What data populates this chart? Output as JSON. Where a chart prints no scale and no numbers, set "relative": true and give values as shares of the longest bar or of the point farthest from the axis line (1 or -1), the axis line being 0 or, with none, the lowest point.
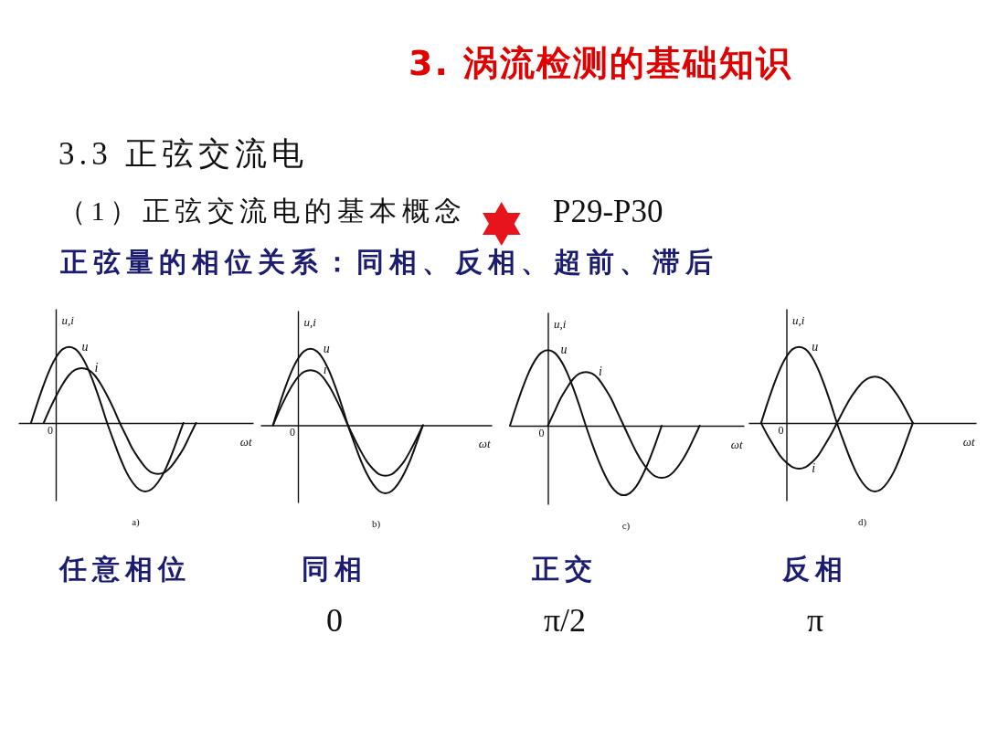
{
  "chart_data": [
    {
      "type": "other",
      "title": "3. 涡流检测的基础知识",
      "subtitle": "3.3 正弦交流电",
      "annotations": [
        "（1）正弦交流电的基本概念",
        "P29-P30",
        "正弦量的相位关系：同相、反相、超前、滞后"
      ]
    },
    {
      "type": "line",
      "relative": true,
      "xlabel": "ωt",
      "ylabel": "u,i",
      "categories": [
        null,
        null,
        null,
        null,
        null,
        null,
        null,
        null,
        null,
        null,
        null,
        null,
        null,
        null,
        null,
        null,
        null,
        null,
        null,
        null,
        null,
        null,
        null,
        null,
        null,
        null,
        null,
        null,
        null,
        null,
        null,
        null,
        null,
        null,
        null,
        null,
        null,
        null
      ],
      "series": [
        {
          "name": "u",
          "color": "#111111",
          "values": [
            null,
            null,
            0,
            0.26,
            0.5,
            0.71,
            0.87,
            0.97,
            1,
            0.97,
            0.87,
            0.71,
            0.5,
            0.26,
            0,
            -0.23,
            -0.45,
            -0.64,
            -0.78,
            -0.87,
            -0.9,
            -0.87,
            -0.78,
            -0.64,
            -0.45,
            -0.23,
            0,
            null,
            null,
            null,
            null,
            null,
            null,
            null,
            null,
            null,
            null,
            null
          ]
        },
        {
          "name": "i",
          "color": "#111111",
          "values": [
            null,
            null,
            null,
            null,
            0,
            0.19,
            0.36,
            0.51,
            0.63,
            0.7,
            0.72,
            0.7,
            0.63,
            0.51,
            0.36,
            0.19,
            0,
            -0.17,
            -0.34,
            -0.47,
            -0.58,
            -0.65,
            -0.67,
            -0.65,
            -0.58,
            -0.47,
            -0.34,
            -0.17,
            0,
            null,
            null,
            null,
            null,
            null,
            null,
            null,
            null,
            null
          ]
        }
      ],
      "annotations": [
        "0",
        "a)",
        "任意相位"
      ]
    },
    {
      "type": "line",
      "relative": true,
      "xlabel": "ωt",
      "ylabel": "u,i",
      "categories": [
        null,
        null,
        null,
        null,
        null,
        null,
        null,
        null,
        null,
        null,
        null,
        null,
        null,
        null,
        null,
        null,
        null,
        null,
        null,
        null,
        null,
        null,
        null,
        null,
        null,
        null,
        null,
        null,
        null,
        null,
        null,
        null,
        null,
        null,
        null,
        null,
        null,
        null
      ],
      "series": [
        {
          "name": "u",
          "color": "#111111",
          "values": [
            null,
            null,
            0,
            0.26,
            0.5,
            0.71,
            0.87,
            0.97,
            1,
            0.97,
            0.87,
            0.71,
            0.5,
            0.26,
            0,
            -0.23,
            -0.45,
            -0.63,
            -0.77,
            -0.86,
            -0.89,
            -0.86,
            -0.77,
            -0.63,
            -0.45,
            -0.23,
            0,
            null,
            null,
            null,
            null,
            null,
            null,
            null,
            null,
            null,
            null,
            null
          ]
        },
        {
          "name": "i",
          "color": "#111111",
          "values": [
            null,
            null,
            0,
            0.19,
            0.36,
            0.51,
            0.63,
            0.7,
            0.72,
            0.7,
            0.63,
            0.51,
            0.36,
            0.19,
            0,
            -0.17,
            -0.33,
            -0.47,
            -0.57,
            -0.64,
            -0.66,
            -0.64,
            -0.57,
            -0.47,
            -0.33,
            -0.17,
            0,
            null,
            null,
            null,
            null,
            null,
            null,
            null,
            null,
            null,
            null,
            null
          ]
        }
      ],
      "annotations": [
        "0",
        "b)",
        "同相",
        "0"
      ]
    },
    {
      "type": "line",
      "relative": true,
      "xlabel": "ωt",
      "ylabel": "u,i",
      "categories": [
        null,
        null,
        null,
        null,
        null,
        null,
        null,
        null,
        null,
        null,
        null,
        null,
        null,
        null,
        null,
        null,
        null,
        null,
        null,
        null,
        null,
        null,
        null,
        null,
        null,
        null,
        null,
        null,
        null,
        null,
        null,
        null,
        null,
        null,
        null,
        null,
        null,
        null
      ],
      "series": [
        {
          "name": "u",
          "color": "#111111",
          "values": [
            0,
            0.26,
            0.5,
            0.71,
            0.87,
            0.97,
            1,
            0.97,
            0.87,
            0.71,
            0.5,
            0.26,
            0,
            -0.24,
            -0.46,
            -0.65,
            -0.8,
            -0.89,
            -0.92,
            -0.89,
            -0.8,
            -0.65,
            -0.46,
            -0.24,
            0,
            null,
            null,
            null,
            null,
            null,
            null,
            null,
            null,
            null,
            null,
            null,
            null,
            null
          ]
        },
        {
          "name": "i",
          "color": "#111111",
          "values": [
            null,
            null,
            null,
            null,
            null,
            null,
            0,
            0.18,
            0.36,
            0.5,
            0.62,
            0.69,
            0.71,
            0.69,
            0.62,
            0.5,
            0.36,
            0.18,
            0,
            -0.18,
            -0.35,
            -0.49,
            -0.6,
            -0.67,
            -0.69,
            -0.67,
            -0.6,
            -0.49,
            -0.35,
            -0.18,
            0,
            null,
            null,
            null,
            null,
            null,
            null,
            null
          ]
        }
      ],
      "annotations": [
        "0",
        "c)",
        "正交",
        "π/2"
      ]
    },
    {
      "type": "line",
      "relative": true,
      "xlabel": "ωt",
      "ylabel": "u,i",
      "categories": [
        null,
        null,
        null,
        null,
        null,
        null,
        null,
        null,
        null,
        null,
        null,
        null,
        null,
        null,
        null,
        null,
        null,
        null,
        null,
        null,
        null,
        null,
        null,
        null,
        null,
        null,
        null,
        null,
        null,
        null,
        null,
        null,
        null,
        null,
        null,
        null,
        null
      ],
      "series": [
        {
          "name": "u",
          "color": "#111111",
          "values": [
            null,
            null,
            0,
            0.26,
            0.5,
            0.71,
            0.87,
            0.97,
            1,
            0.97,
            0.87,
            0.71,
            0.5,
            0.26,
            0,
            -0.23,
            -0.45,
            -0.64,
            -0.78,
            -0.87,
            -0.9,
            -0.87,
            -0.78,
            -0.64,
            -0.45,
            -0.23,
            0,
            null,
            null,
            null,
            null,
            null,
            null,
            null,
            null,
            null,
            null
          ]
        },
        {
          "name": "i",
          "color": "#111111",
          "values": [
            null,
            null,
            0,
            -0.16,
            -0.3,
            -0.43,
            -0.52,
            -0.58,
            -0.6,
            -0.58,
            -0.52,
            -0.43,
            -0.3,
            -0.16,
            0,
            0.16,
            0.31,
            0.43,
            0.53,
            0.59,
            0.61,
            0.59,
            0.53,
            0.43,
            0.31,
            0.16,
            0,
            null,
            null,
            null,
            null,
            null,
            null,
            null,
            null,
            null,
            null
          ]
        }
      ],
      "annotations": [
        "0",
        "d)",
        "反相",
        "π"
      ]
    }
  ]
}
